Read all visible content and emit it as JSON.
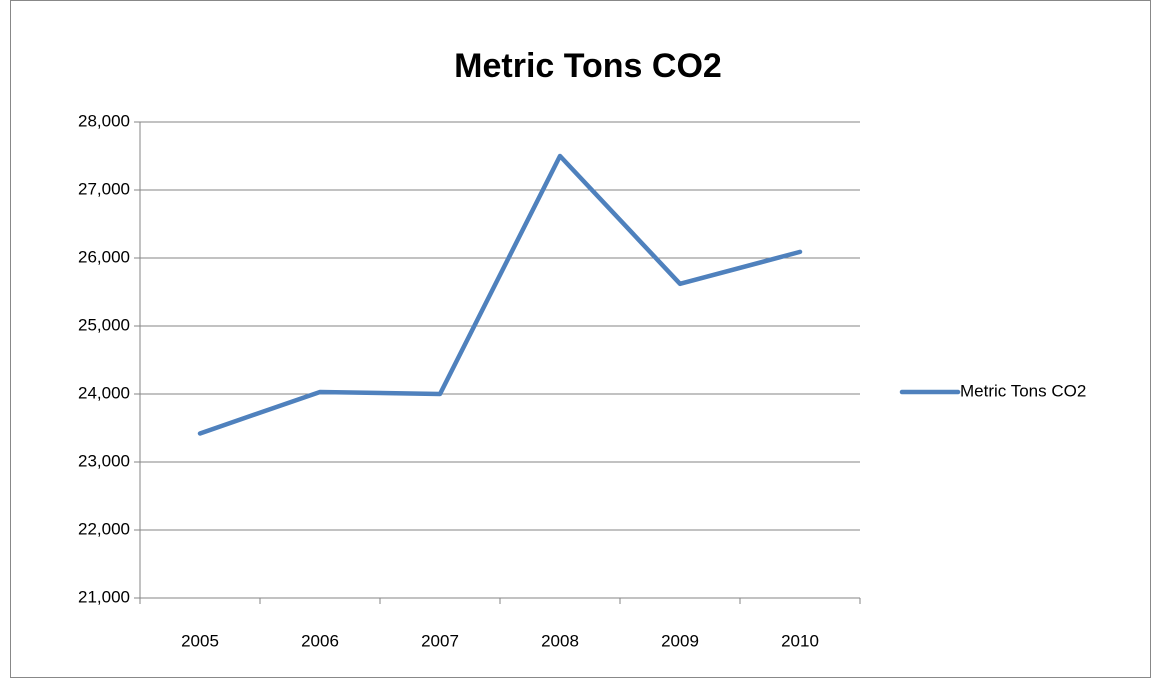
{
  "chart_data": {
    "type": "line",
    "title": "Metric Tons CO2",
    "categories": [
      "2005",
      "2006",
      "2007",
      "2008",
      "2009",
      "2010"
    ],
    "series": [
      {
        "name": "Metric Tons CO2",
        "color": "#4f81bd",
        "values": [
          23420,
          24030,
          24000,
          27500,
          25620,
          26090
        ]
      }
    ],
    "ylim": [
      21000,
      28000
    ],
    "yticks": [
      {
        "value": 21000,
        "label": "21,000"
      },
      {
        "value": 22000,
        "label": "22,000"
      },
      {
        "value": 23000,
        "label": "23,000"
      },
      {
        "value": 24000,
        "label": "24,000"
      },
      {
        "value": 25000,
        "label": "25,000"
      },
      {
        "value": 26000,
        "label": "26,000"
      },
      {
        "value": 27000,
        "label": "27,000"
      },
      {
        "value": 28000,
        "label": "28,000"
      }
    ],
    "grid": true,
    "legend": "right"
  }
}
